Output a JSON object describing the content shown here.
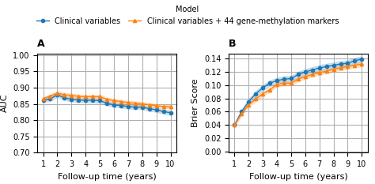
{
  "legend_title": "Model",
  "legend": "upper center",
  "chart_data": [
    {
      "type": "line",
      "title": "A",
      "xlabel": "Follow-up time (years)",
      "ylabel": "AUC",
      "x": [
        1.0,
        1.5,
        2.0,
        2.5,
        3.0,
        3.5,
        4.0,
        4.5,
        5.0,
        5.5,
        6.0,
        6.5,
        7.0,
        7.5,
        8.0,
        8.5,
        9.0,
        9.5,
        10.0
      ],
      "series": [
        {
          "name": "Clinical variables",
          "marker": "o",
          "values": [
            0.862,
            0.865,
            0.878,
            0.868,
            0.864,
            0.862,
            0.861,
            0.861,
            0.86,
            0.852,
            0.847,
            0.845,
            0.842,
            0.84,
            0.84,
            0.835,
            0.832,
            0.826,
            0.823
          ],
          "lo": [
            0.855,
            0.857,
            0.869,
            0.86,
            0.856,
            0.854,
            0.853,
            0.853,
            0.852,
            0.844,
            0.839,
            0.837,
            0.834,
            0.832,
            0.832,
            0.827,
            0.824,
            0.818,
            0.815
          ],
          "hi": [
            0.869,
            0.873,
            0.887,
            0.876,
            0.872,
            0.87,
            0.869,
            0.869,
            0.868,
            0.86,
            0.855,
            0.853,
            0.85,
            0.848,
            0.848,
            0.843,
            0.84,
            0.834,
            0.831
          ]
        },
        {
          "name": "Clinical variables + 44 gene-methylation markers",
          "marker": "^",
          "values": [
            0.866,
            0.874,
            0.883,
            0.878,
            0.876,
            0.873,
            0.872,
            0.872,
            0.872,
            0.864,
            0.86,
            0.857,
            0.854,
            0.852,
            0.85,
            0.847,
            0.844,
            0.842,
            0.841
          ],
          "lo": [
            0.859,
            0.867,
            0.876,
            0.871,
            0.869,
            0.866,
            0.865,
            0.865,
            0.865,
            0.857,
            0.853,
            0.85,
            0.847,
            0.845,
            0.843,
            0.84,
            0.837,
            0.835,
            0.834
          ],
          "hi": [
            0.873,
            0.881,
            0.89,
            0.885,
            0.883,
            0.88,
            0.879,
            0.879,
            0.879,
            0.871,
            0.867,
            0.864,
            0.861,
            0.859,
            0.857,
            0.854,
            0.851,
            0.849,
            0.848
          ]
        }
      ],
      "xlim": [
        0.6,
        10.4
      ],
      "xticks": [
        1,
        2,
        3,
        4,
        5,
        6,
        7,
        8,
        9,
        10
      ],
      "ylim": [
        0.7,
        1.005
      ],
      "yticks": [
        {
          "value": 0.7,
          "label": "0.70"
        },
        {
          "value": 0.75,
          "label": "0.75"
        },
        {
          "value": 0.8,
          "label": "0.80"
        },
        {
          "value": 0.85,
          "label": "0.85"
        },
        {
          "value": 0.9,
          "label": "0.90"
        },
        {
          "value": 0.95,
          "label": "0.95"
        },
        {
          "value": 1.0,
          "label": "1.00"
        }
      ],
      "grid": true
    },
    {
      "type": "line",
      "title": "B",
      "xlabel": "Follow-up time (years)",
      "ylabel": "Brier Score",
      "x": [
        1.0,
        1.5,
        2.0,
        2.5,
        3.0,
        3.5,
        4.0,
        4.5,
        5.0,
        5.5,
        6.0,
        6.5,
        7.0,
        7.5,
        8.0,
        8.5,
        9.0,
        9.5,
        10.0
      ],
      "series": [
        {
          "name": "Clinical variables",
          "marker": "o",
          "values": [
            0.04,
            0.06,
            0.075,
            0.087,
            0.096,
            0.103,
            0.107,
            0.109,
            0.11,
            0.116,
            0.12,
            0.123,
            0.126,
            0.128,
            0.13,
            0.132,
            0.133,
            0.137,
            0.139
          ],
          "lo": [
            0.037,
            0.056,
            0.07,
            0.082,
            0.091,
            0.098,
            0.102,
            0.104,
            0.105,
            0.111,
            0.115,
            0.118,
            0.121,
            0.123,
            0.125,
            0.127,
            0.128,
            0.132,
            0.134
          ],
          "hi": [
            0.043,
            0.064,
            0.08,
            0.092,
            0.101,
            0.108,
            0.112,
            0.114,
            0.115,
            0.121,
            0.125,
            0.128,
            0.131,
            0.133,
            0.135,
            0.137,
            0.138,
            0.142,
            0.144
          ]
        },
        {
          "name": "Clinical variables + 44 gene-methylation markers",
          "marker": "^",
          "values": [
            0.04,
            0.057,
            0.07,
            0.079,
            0.087,
            0.093,
            0.101,
            0.103,
            0.103,
            0.109,
            0.113,
            0.116,
            0.119,
            0.121,
            0.124,
            0.126,
            0.128,
            0.13,
            0.132
          ],
          "lo": [
            0.037,
            0.053,
            0.066,
            0.075,
            0.083,
            0.089,
            0.097,
            0.099,
            0.099,
            0.105,
            0.109,
            0.112,
            0.115,
            0.117,
            0.12,
            0.122,
            0.124,
            0.126,
            0.128
          ],
          "hi": [
            0.043,
            0.061,
            0.074,
            0.083,
            0.091,
            0.097,
            0.105,
            0.107,
            0.107,
            0.113,
            0.117,
            0.12,
            0.123,
            0.125,
            0.128,
            0.13,
            0.132,
            0.134,
            0.136
          ]
        }
      ],
      "xlim": [
        0.6,
        10.4
      ],
      "xticks": [
        1,
        2,
        3,
        4,
        5,
        6,
        7,
        8,
        9,
        10
      ],
      "ylim": [
        -0.002,
        0.148
      ],
      "yticks": [
        {
          "value": 0.0,
          "label": "0.00"
        },
        {
          "value": 0.02,
          "label": "0.02"
        },
        {
          "value": 0.04,
          "label": "0.04"
        },
        {
          "value": 0.06,
          "label": "0.06"
        },
        {
          "value": 0.08,
          "label": "0.08"
        },
        {
          "value": 0.1,
          "label": "0.10"
        },
        {
          "value": 0.12,
          "label": "0.12"
        },
        {
          "value": 0.14,
          "label": "0.14"
        }
      ],
      "grid": true
    }
  ]
}
